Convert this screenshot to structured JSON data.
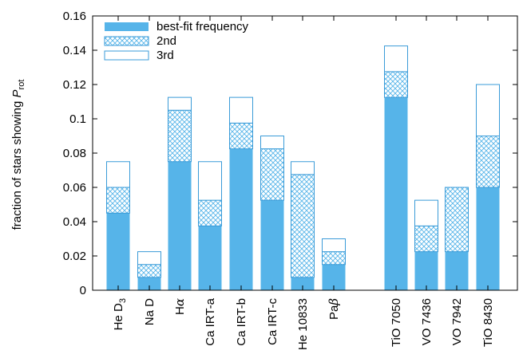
{
  "chart_data": {
    "type": "bar",
    "stacked": true,
    "ylabel": "fraction of stars showing P_rot",
    "ylabel_parts": {
      "main": "fraction of stars showing ",
      "symbol": "P",
      "subscript": "rot"
    },
    "ylim": [
      0,
      0.16
    ],
    "yticks": [
      "0",
      "0.02",
      "0.04",
      "0.06",
      "0.08",
      "0.1",
      "0.12",
      "0.14",
      "0.16"
    ],
    "categories": [
      "He D3",
      "Na D",
      "Hα",
      "Ca IRT-a",
      "Ca IRT-b",
      "Ca IRT-c",
      "He 10833",
      "Paβ",
      "TiO 7050",
      "VO 7436",
      "VO 7942",
      "TiO 8430"
    ],
    "category_labels": [
      {
        "base": "He D",
        "sub": "3"
      },
      {
        "base": "Na D"
      },
      {
        "base": "H",
        "greek": "α"
      },
      {
        "base": "Ca IRT-a"
      },
      {
        "base": "Ca IRT-b"
      },
      {
        "base": "Ca IRT-c"
      },
      {
        "base": "He 10833"
      },
      {
        "base": "Pa",
        "greek": "β"
      },
      {
        "base": "TiO 7050"
      },
      {
        "base": "VO 7436"
      },
      {
        "base": "VO 7942"
      },
      {
        "base": "TiO 8430"
      }
    ],
    "series": [
      {
        "name": "best-fit frequency",
        "style": "solid",
        "values": [
          0.045,
          0.0075,
          0.075,
          0.0375,
          0.0825,
          0.0525,
          0.0075,
          0.015,
          0.1125,
          0.0225,
          0.0225,
          0.06
        ]
      },
      {
        "name": "2nd",
        "style": "hatched",
        "values": [
          0.015,
          0.0075,
          0.03,
          0.015,
          0.015,
          0.03,
          0.06,
          0.0075,
          0.015,
          0.015,
          0.0375,
          0.03
        ]
      },
      {
        "name": "3rd",
        "style": "outline",
        "values": [
          0.015,
          0.0075,
          0.0075,
          0.0225,
          0.015,
          0.0075,
          0.0075,
          0.0075,
          0.015,
          0.015,
          0.0,
          0.03
        ]
      }
    ],
    "legend_position": "top-left",
    "grid": false,
    "colors": {
      "bar": "#56b4e9",
      "edge": "#3a9bd8",
      "axis": "#000000"
    }
  }
}
